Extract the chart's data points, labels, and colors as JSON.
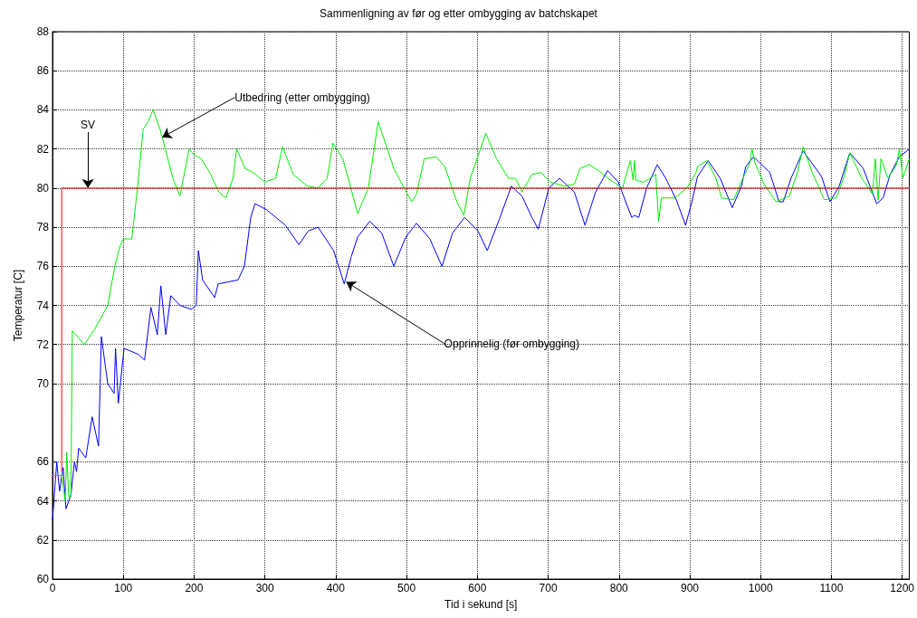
{
  "chart_data": {
    "type": "line",
    "title": "Sammenligning av før og etter ombygging av batchskapet",
    "xlabel": "Tid i sekund [s]",
    "ylabel": "Temperatur [C]",
    "xlim": [
      0,
      1210
    ],
    "xticks": [
      0,
      100,
      200,
      300,
      400,
      500,
      600,
      700,
      800,
      900,
      1000,
      1100,
      1200
    ],
    "ylim": [
      60,
      88
    ],
    "yticks": [
      60,
      62,
      64,
      66,
      70,
      72,
      74,
      76,
      78,
      80,
      82,
      84,
      86,
      88
    ],
    "grid": true,
    "marker": "none",
    "line_style": "solid",
    "series": [
      {
        "color": "#ff0000",
        "x": [
          13,
          13,
          1210
        ],
        "values": [
          65.5,
          80,
          80
        ]
      },
      {
        "color": "#00ee00",
        "x": [
          0,
          13,
          18,
          20,
          23,
          26,
          28,
          45,
          60,
          78,
          88,
          95,
          100,
          112,
          120,
          128,
          135,
          142,
          152,
          170,
          180,
          193,
          200,
          210,
          222,
          235,
          245,
          255,
          260,
          272,
          283,
          290,
          300,
          315,
          325,
          340,
          360,
          375,
          388,
          396,
          410,
          431,
          446,
          460,
          482,
          507,
          514,
          525,
          542,
          554,
          571,
          581,
          590,
          612,
          627,
          644,
          654,
          663,
          677,
          690,
          703,
          724,
          737,
          745,
          758,
          771,
          788,
          805,
          816,
          820,
          822,
          824,
          835,
          852,
          856,
          860,
          879,
          896,
          909,
          911,
          924,
          937,
          945,
          962,
          975,
          985,
          988,
          992,
          1005,
          1022,
          1041,
          1052,
          1060,
          1073,
          1090,
          1107,
          1118,
          1126,
          1143,
          1158,
          1162,
          1166,
          1170,
          1180,
          1192,
          1196,
          1201,
          1210
        ],
        "values": [
          65.3,
          65.3,
          64,
          66.5,
          64.2,
          64.2,
          72.7,
          72,
          72.8,
          74,
          76,
          77,
          77.4,
          77.4,
          80,
          83,
          83.4,
          84,
          83,
          80.5,
          79.6,
          82,
          81.7,
          81.5,
          80.8,
          79.8,
          79.5,
          80.5,
          82,
          81,
          80.8,
          80.6,
          80.3,
          80.5,
          82.1,
          80.7,
          80.1,
          80,
          80.5,
          82.3,
          81.5,
          78.7,
          80,
          83.4,
          81,
          79.3,
          79.7,
          81.5,
          81.6,
          81.1,
          79.3,
          78.6,
          80.5,
          82.8,
          81.5,
          80.5,
          80.5,
          79.8,
          80.7,
          80.8,
          80.3,
          80.1,
          80.2,
          81,
          81.2,
          80.9,
          80.4,
          80,
          81.4,
          80.4,
          81.4,
          80.4,
          80.3,
          80.7,
          78.3,
          79.5,
          79.5,
          80,
          80.8,
          81.1,
          81.4,
          80.5,
          79.5,
          79.4,
          80.5,
          81.3,
          82,
          81.3,
          80.2,
          79.3,
          79.6,
          80.8,
          82.1,
          80.8,
          79.4,
          79.5,
          80.6,
          81.8,
          80.5,
          79.7,
          81.5,
          79.4,
          81.5,
          80.5,
          81.2,
          82,
          80.5,
          81.5
        ]
      },
      {
        "color": "#0000ff",
        "x": [
          0,
          6,
          10,
          15,
          19,
          26,
          31,
          34,
          37,
          47,
          56,
          65,
          69,
          78,
          87,
          89,
          93,
          101,
          121,
          130,
          139,
          148,
          153,
          160,
          167,
          180,
          196,
          203,
          206,
          212,
          229,
          234,
          262,
          271,
          280,
          286,
          302,
          329,
          348,
          361,
          375,
          397,
          412,
          422,
          431,
          448,
          465,
          482,
          499,
          514,
          533,
          550,
          565,
          582,
          601,
          614,
          631,
          648,
          663,
          677,
          686,
          701,
          716,
          737,
          752,
          767,
          784,
          799,
          818,
          822,
          828,
          839,
          854,
          866,
          881,
          894,
          903,
          911,
          926,
          943,
          960,
          973,
          979,
          990,
          1013,
          1026,
          1032,
          1043,
          1060,
          1086,
          1098,
          1111,
          1126,
          1145,
          1164,
          1173,
          1183,
          1196,
          1210
        ],
        "values": [
          63,
          66,
          64.5,
          65.7,
          63.6,
          64.3,
          66,
          65.5,
          66.7,
          66.2,
          68.3,
          66.8,
          72.4,
          70,
          69.5,
          71.8,
          69,
          71.8,
          71.5,
          71.2,
          73.9,
          72.5,
          75,
          72.5,
          74.5,
          74,
          73.8,
          74,
          76.8,
          75.3,
          74.4,
          75.1,
          75.3,
          76,
          78.5,
          79.2,
          78.9,
          78.1,
          77.1,
          77.8,
          78,
          76.8,
          75.1,
          76.5,
          77.5,
          78.3,
          77.7,
          76,
          77.5,
          78.2,
          77.4,
          76,
          77.7,
          78.5,
          77.8,
          76.8,
          78.4,
          80.1,
          79.6,
          78.5,
          77.9,
          80,
          80.5,
          79.8,
          78.1,
          79.8,
          80.9,
          80.3,
          78.5,
          78.6,
          78.5,
          80,
          81.2,
          80.5,
          79.4,
          78.1,
          79.3,
          80.6,
          81.4,
          80.5,
          79,
          80.1,
          81.1,
          81.6,
          80.8,
          79.3,
          79.3,
          80.5,
          81.9,
          80.6,
          79.3,
          80.1,
          81.8,
          81,
          79.2,
          79.5,
          80.7,
          81.6,
          82
        ]
      }
    ],
    "annotations": [
      {
        "text": "SV",
        "x": 50,
        "y": 80
      },
      {
        "text": "Utbedring (etter ombygging)",
        "x": 155,
        "y": 82.6
      },
      {
        "text": "Opprinnelig (før ombygging)",
        "x": 415,
        "y": 75.2
      }
    ]
  }
}
